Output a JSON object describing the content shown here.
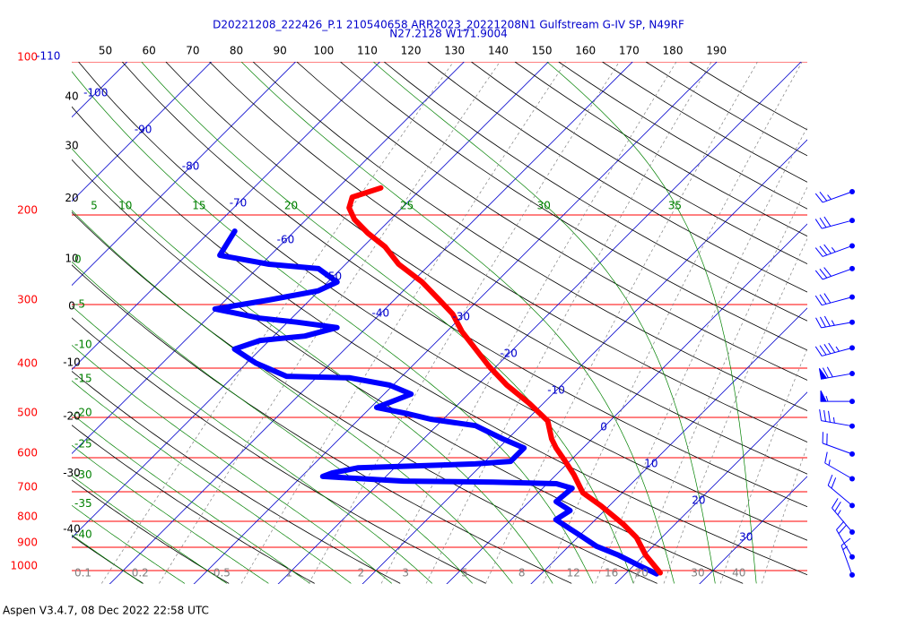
{
  "chart_data": {
    "type": "skewt",
    "title": "D20221208_222426_P.1 210540658 ARR2023_20221208N1 Gulfstream G-IV SP, N49RF",
    "subtitle": "N27.2128 W171.9004",
    "footer": "Aspen V3.4.7, 08 Dec 2022  22:58 UTC",
    "log_y": true,
    "ylim": [
      1000,
      100
    ],
    "yticks": [
      100,
      200,
      300,
      400,
      500,
      600,
      700,
      800,
      900,
      1000
    ],
    "pressure_color": "#ff0000",
    "xlim": [
      -46.1,
      41.2
    ],
    "isotherm_labels": [
      -110,
      -100,
      -90,
      -80,
      -70,
      -60,
      -50,
      -40,
      -30,
      -20,
      -10,
      0,
      10,
      20,
      30
    ],
    "isotherm_color": "#0000cc",
    "dry_adiabats_left": [
      40,
      30,
      20,
      10,
      0,
      -10,
      -20,
      -30,
      -40
    ],
    "dry_adiabats_top": [
      50,
      60,
      70,
      80,
      90,
      100,
      110,
      120,
      130,
      140,
      150,
      160,
      170,
      180,
      190
    ],
    "dry_color": "#000000",
    "moist_adiabats_left": [
      0,
      -5,
      -10,
      -15,
      -20,
      -25,
      -30,
      -35,
      -40
    ],
    "moist_adiabats_top": [
      5,
      10,
      15,
      20,
      25,
      30,
      35
    ],
    "moist_color": "#008000",
    "mixing_ratios": [
      0.1,
      0.2,
      0.5,
      1,
      2,
      3,
      5,
      8,
      12,
      16,
      20,
      30,
      40
    ],
    "mixing_color": "#808080",
    "temperature": {
      "color": "#ff0000",
      "p": [
        177,
        184.5,
        193.6,
        204,
        217,
        231,
        250,
        271,
        294,
        313,
        339,
        367,
        398,
        432,
        469,
        508,
        551,
        574,
        610,
        648,
        703,
        747,
        810,
        861,
        933,
        1010
      ],
      "t": [
        -54.9,
        -57.2,
        -56.3,
        -54.3,
        -51.1,
        -47.4,
        -43.7,
        -38.8,
        -34.6,
        -31.4,
        -28.2,
        -24.5,
        -20.7,
        -16.5,
        -11.7,
        -7.4,
        -4.8,
        -3.2,
        -0.5,
        2.1,
        5.3,
        9.1,
        13.8,
        17.0,
        20.2,
        24.0
      ]
    },
    "dewpoint": {
      "color": "#0000ff",
      "p": [
        215.2,
        240,
        250,
        255,
        271,
        282,
        294,
        306,
        319,
        325,
        333,
        346,
        353,
        367,
        391,
        415,
        418,
        432,
        450,
        478,
        492,
        504,
        519,
        551,
        574,
        610,
        617,
        628,
        643,
        653,
        667,
        670,
        675,
        689,
        732,
        762,
        794,
        827,
        861,
        896,
        933,
        972,
        1015
      ],
      "t": [
        -67.1,
        -66.0,
        -59.1,
        -52.7,
        -48.9,
        -50.1,
        -54.9,
        -60.2,
        -53.8,
        -48.9,
        -43.5,
        -46.3,
        -51.1,
        -53.1,
        -48.9,
        -43.7,
        -36.0,
        -30.4,
        -26.8,
        -29.3,
        -24.8,
        -21.5,
        -15.4,
        -10.6,
        -7.0,
        -7.0,
        -10.9,
        -24.3,
        -26.8,
        -27.5,
        -17.4,
        -6.6,
        1.1,
        3.5,
        3.2,
        5.9,
        5.3,
        8.0,
        10.7,
        13.3,
        17.0,
        20.2,
        23.7
      ]
    },
    "wind": {
      "color": "#0000ff",
      "p": [
        180,
        205,
        230,
        255,
        290,
        325,
        365,
        410,
        465,
        520,
        590,
        660,
        745,
        840,
        940,
        1020
      ],
      "speed": [
        25,
        30,
        35,
        30,
        30,
        35,
        45,
        70,
        55,
        35,
        20,
        15,
        20,
        25,
        20,
        15
      ],
      "direction": [
        250,
        255,
        250,
        250,
        255,
        260,
        255,
        260,
        270,
        280,
        290,
        300,
        310,
        320,
        330,
        340
      ]
    }
  }
}
